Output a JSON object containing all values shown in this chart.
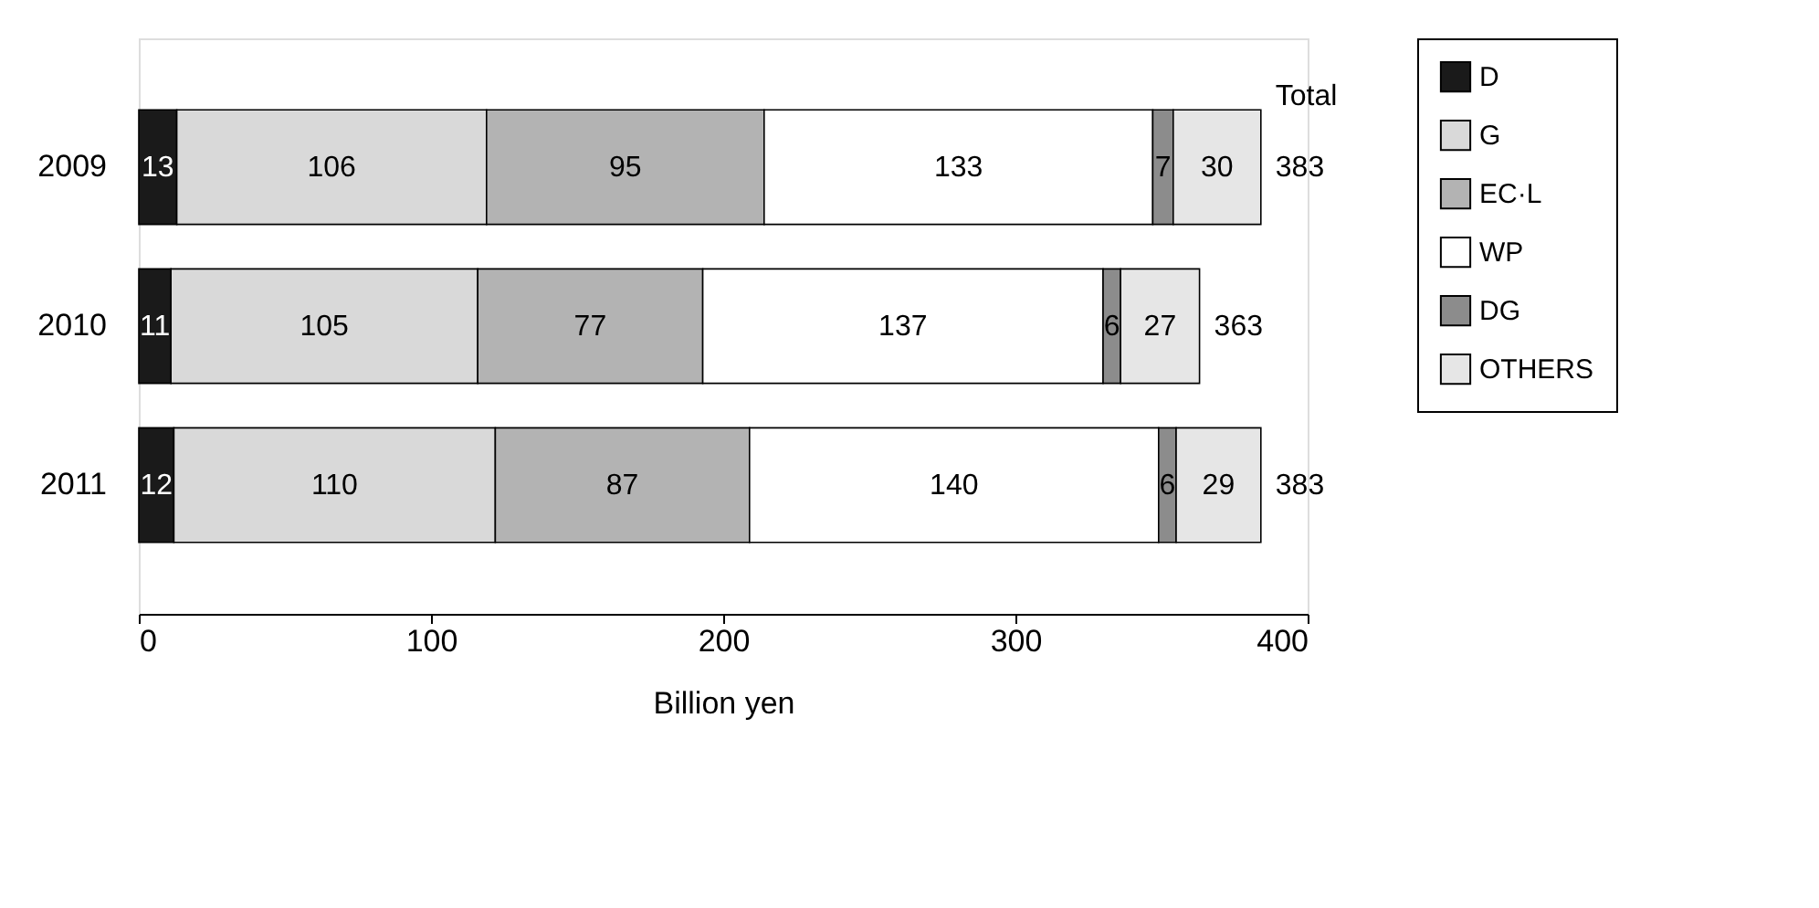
{
  "chart_data": {
    "type": "bar",
    "orientation": "horizontal",
    "stacked": true,
    "categories": [
      "2009",
      "2010",
      "2011"
    ],
    "series": [
      {
        "name": "D",
        "color": "#1a1a1a",
        "values": [
          13,
          11,
          12
        ]
      },
      {
        "name": "G",
        "color": "#d9d9d9",
        "values": [
          106,
          105,
          110
        ]
      },
      {
        "name": "EC·L",
        "color": "#b3b3b3",
        "values": [
          95,
          77,
          87
        ]
      },
      {
        "name": "WP",
        "color": "#ffffff",
        "values": [
          133,
          137,
          140
        ]
      },
      {
        "name": "DG",
        "color": "#8c8c8c",
        "values": [
          7,
          6,
          6
        ]
      },
      {
        "name": "OTHERS",
        "color": "#e6e6e6",
        "values": [
          30,
          27,
          29
        ]
      }
    ],
    "data_labels": true,
    "totals": [
      "383",
      "363",
      "383"
    ],
    "annotations": [
      "Total"
    ],
    "xlabel": "Billion yen",
    "xlim": [
      0,
      400
    ],
    "xticks": [
      0,
      100,
      200,
      300,
      400
    ],
    "grid": false,
    "legend": "right"
  }
}
